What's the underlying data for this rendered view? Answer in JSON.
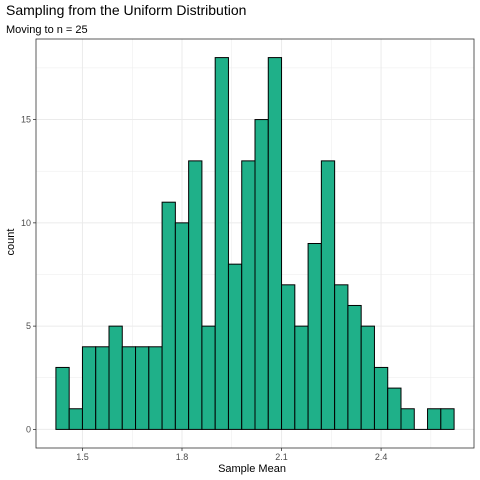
{
  "chart_data": {
    "type": "bar",
    "title": "Sampling from the Uniform Distribution",
    "subtitle": "Moving to n = 25",
    "xlabel": "Sample Mean",
    "ylabel": "count",
    "bin_width": 0.04,
    "bin_centers": [
      1.44,
      1.48,
      1.52,
      1.56,
      1.6,
      1.64,
      1.68,
      1.72,
      1.76,
      1.8,
      1.84,
      1.88,
      1.92,
      1.96,
      2.0,
      2.04,
      2.08,
      2.12,
      2.16,
      2.2,
      2.24,
      2.28,
      2.32,
      2.36,
      2.4,
      2.44,
      2.48,
      2.52,
      2.56,
      2.6
    ],
    "values": [
      3,
      1,
      4,
      4,
      5,
      4,
      4,
      4,
      11,
      10,
      13,
      5,
      18,
      8,
      13,
      15,
      18,
      7,
      5,
      9,
      13,
      7,
      6,
      5,
      3,
      2,
      1,
      0,
      1,
      1
    ],
    "xlim": [
      1.36,
      2.68
    ],
    "ylim": [
      -0.9,
      18.9
    ],
    "x_ticks": [
      1.5,
      1.8,
      2.1,
      2.4
    ],
    "x_tick_labels": [
      "1.5",
      "1.8",
      "2.1",
      "2.4"
    ],
    "y_ticks": [
      0,
      5,
      10,
      15
    ],
    "y_tick_labels": [
      "0",
      "5",
      "10",
      "15"
    ],
    "grid": true,
    "bar_fill": "#1fb089",
    "bar_stroke": "#000000",
    "panel_background": "#ffffff",
    "grid_color": "#ebebeb"
  }
}
